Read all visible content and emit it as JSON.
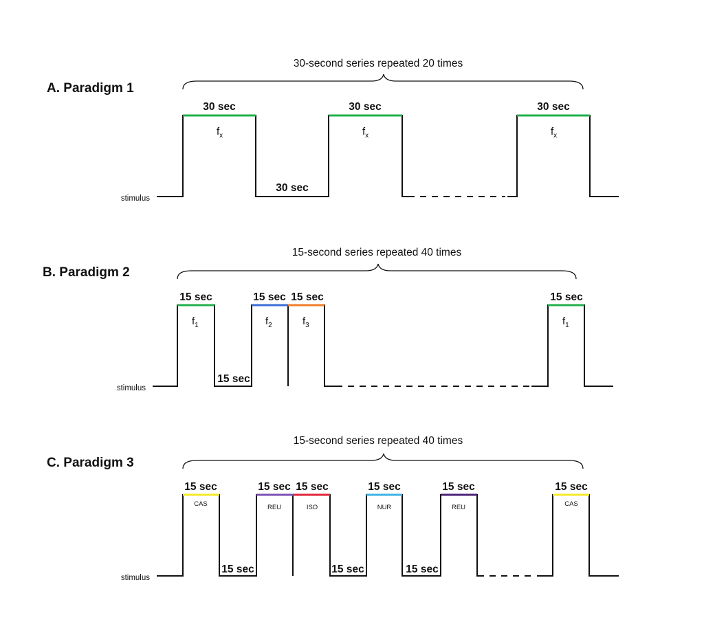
{
  "colors": {
    "green": "#22b14c",
    "blue": "#3b6fd6",
    "orange": "#f07f2a",
    "yellow": "#f5e92a",
    "purple": "#7b52b3",
    "red": "#e0263a",
    "cyan": "#3db3e6",
    "dark_purple": "#4b2377"
  },
  "paradigm1": {
    "title": "A. Paradigm 1",
    "brace_label": "30-second series repeated 20 times",
    "stimulus_label": "stimulus",
    "pulses": [
      {
        "duration": "30 sec",
        "color": "green",
        "symbol": "f",
        "sub": "x"
      },
      {
        "duration": "30 sec",
        "color": "green",
        "symbol": "f",
        "sub": "x"
      },
      {
        "duration": "30 sec",
        "color": "green",
        "symbol": "f",
        "sub": "x"
      }
    ],
    "gaps": [
      "30 sec"
    ]
  },
  "paradigm2": {
    "title": "B. Paradigm 2",
    "brace_label": "15-second series repeated 40 times",
    "stimulus_label": "stimulus",
    "pulses": [
      {
        "duration": "15 sec",
        "color": "green",
        "symbol": "f",
        "sub": "1"
      },
      {
        "duration": "15 sec",
        "color": "blue",
        "symbol": "f",
        "sub": "2"
      },
      {
        "duration": "15 sec",
        "color": "orange",
        "symbol": "f",
        "sub": "3"
      },
      {
        "duration": "15 sec",
        "color": "green",
        "symbol": "f",
        "sub": "1"
      }
    ],
    "gaps": [
      "15 sec"
    ]
  },
  "paradigm3": {
    "title": "C. Paradigm 3",
    "brace_label": "15-second series repeated 40 times",
    "stimulus_label": "stimulus",
    "pulses": [
      {
        "duration": "15 sec",
        "color": "yellow",
        "code": "CAS"
      },
      {
        "duration": "15 sec",
        "color": "purple",
        "code": "REU"
      },
      {
        "duration": "15 sec",
        "color": "red",
        "code": "ISO"
      },
      {
        "duration": "15 sec",
        "color": "cyan",
        "code": "NUR"
      },
      {
        "duration": "15 sec",
        "color": "dark_purple",
        "code": "REU"
      },
      {
        "duration": "15 sec",
        "color": "yellow",
        "code": "CAS"
      }
    ],
    "gaps": [
      "15 sec",
      "15 sec",
      "15 sec"
    ]
  }
}
